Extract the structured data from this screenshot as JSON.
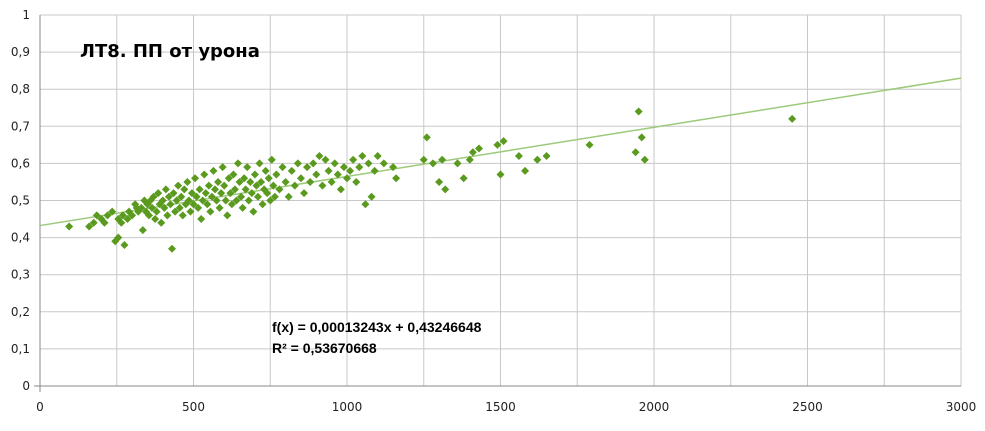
{
  "chart_data": {
    "type": "scatter",
    "title": "ЛТ8. ПП от урона",
    "xlabel": "",
    "ylabel": "",
    "xlim": [
      0,
      3000
    ],
    "ylim": [
      0,
      1
    ],
    "x_ticks": [
      0,
      500,
      1000,
      1500,
      2000,
      2500,
      3000
    ],
    "x_tick_labels": [
      "0",
      "500",
      "1000",
      "1500",
      "2000",
      "2500",
      "3000"
    ],
    "y_ticks": [
      0,
      0.1,
      0.2,
      0.3,
      0.4,
      0.5,
      0.6,
      0.7,
      0.8,
      0.9,
      1
    ],
    "y_tick_labels": [
      "0",
      "0,1",
      "0,2",
      "0,3",
      "0,4",
      "0,5",
      "0,6",
      "0,7",
      "0,8",
      "0,9",
      "1"
    ],
    "x_grid_step": 250,
    "grid": true,
    "colors": {
      "points": "#5a9a1e",
      "trendline": "#9cc97a",
      "grid": "#c8c8c8",
      "axis": "#888888"
    },
    "trendline": {
      "slope": 0.00013243,
      "intercept": 0.43246648
    },
    "annotations": [
      "f(x) = 0,00013243x + 0,43246648",
      "R² = 0,53670668"
    ],
    "series": [
      {
        "points": [
          [
            95,
            0.43
          ],
          [
            160,
            0.43
          ],
          [
            175,
            0.44
          ],
          [
            185,
            0.46
          ],
          [
            200,
            0.45
          ],
          [
            210,
            0.44
          ],
          [
            220,
            0.46
          ],
          [
            235,
            0.47
          ],
          [
            245,
            0.39
          ],
          [
            255,
            0.4
          ],
          [
            255,
            0.45
          ],
          [
            265,
            0.44
          ],
          [
            270,
            0.46
          ],
          [
            275,
            0.38
          ],
          [
            285,
            0.45
          ],
          [
            290,
            0.47
          ],
          [
            300,
            0.46
          ],
          [
            310,
            0.49
          ],
          [
            315,
            0.48
          ],
          [
            320,
            0.47
          ],
          [
            330,
            0.48
          ],
          [
            335,
            0.42
          ],
          [
            340,
            0.5
          ],
          [
            345,
            0.47
          ],
          [
            350,
            0.49
          ],
          [
            355,
            0.46
          ],
          [
            360,
            0.5
          ],
          [
            365,
            0.48
          ],
          [
            370,
            0.51
          ],
          [
            375,
            0.45
          ],
          [
            380,
            0.47
          ],
          [
            385,
            0.52
          ],
          [
            390,
            0.49
          ],
          [
            395,
            0.44
          ],
          [
            400,
            0.5
          ],
          [
            405,
            0.48
          ],
          [
            410,
            0.53
          ],
          [
            415,
            0.46
          ],
          [
            420,
            0.51
          ],
          [
            425,
            0.49
          ],
          [
            430,
            0.37
          ],
          [
            435,
            0.52
          ],
          [
            440,
            0.47
          ],
          [
            445,
            0.5
          ],
          [
            450,
            0.54
          ],
          [
            455,
            0.48
          ],
          [
            460,
            0.51
          ],
          [
            465,
            0.46
          ],
          [
            470,
            0.53
          ],
          [
            475,
            0.49
          ],
          [
            480,
            0.55
          ],
          [
            485,
            0.5
          ],
          [
            490,
            0.47
          ],
          [
            495,
            0.52
          ],
          [
            500,
            0.49
          ],
          [
            505,
            0.56
          ],
          [
            510,
            0.51
          ],
          [
            515,
            0.48
          ],
          [
            520,
            0.53
          ],
          [
            525,
            0.45
          ],
          [
            530,
            0.5
          ],
          [
            535,
            0.57
          ],
          [
            540,
            0.52
          ],
          [
            545,
            0.49
          ],
          [
            550,
            0.54
          ],
          [
            555,
            0.47
          ],
          [
            560,
            0.51
          ],
          [
            565,
            0.58
          ],
          [
            570,
            0.53
          ],
          [
            575,
            0.5
          ],
          [
            580,
            0.55
          ],
          [
            585,
            0.48
          ],
          [
            590,
            0.52
          ],
          [
            595,
            0.59
          ],
          [
            600,
            0.54
          ],
          [
            605,
            0.5
          ],
          [
            610,
            0.46
          ],
          [
            615,
            0.56
          ],
          [
            620,
            0.52
          ],
          [
            625,
            0.49
          ],
          [
            630,
            0.57
          ],
          [
            635,
            0.53
          ],
          [
            640,
            0.5
          ],
          [
            645,
            0.6
          ],
          [
            650,
            0.55
          ],
          [
            655,
            0.51
          ],
          [
            660,
            0.48
          ],
          [
            665,
            0.56
          ],
          [
            670,
            0.53
          ],
          [
            675,
            0.59
          ],
          [
            680,
            0.5
          ],
          [
            685,
            0.55
          ],
          [
            690,
            0.52
          ],
          [
            695,
            0.47
          ],
          [
            700,
            0.57
          ],
          [
            705,
            0.54
          ],
          [
            710,
            0.51
          ],
          [
            715,
            0.6
          ],
          [
            720,
            0.55
          ],
          [
            725,
            0.49
          ],
          [
            730,
            0.53
          ],
          [
            735,
            0.58
          ],
          [
            740,
            0.52
          ],
          [
            745,
            0.56
          ],
          [
            750,
            0.5
          ],
          [
            755,
            0.61
          ],
          [
            760,
            0.54
          ],
          [
            765,
            0.51
          ],
          [
            770,
            0.57
          ],
          [
            780,
            0.53
          ],
          [
            790,
            0.59
          ],
          [
            800,
            0.55
          ],
          [
            810,
            0.51
          ],
          [
            820,
            0.58
          ],
          [
            830,
            0.54
          ],
          [
            840,
            0.6
          ],
          [
            850,
            0.56
          ],
          [
            860,
            0.52
          ],
          [
            870,
            0.59
          ],
          [
            880,
            0.55
          ],
          [
            890,
            0.6
          ],
          [
            900,
            0.57
          ],
          [
            910,
            0.62
          ],
          [
            920,
            0.54
          ],
          [
            930,
            0.61
          ],
          [
            940,
            0.58
          ],
          [
            950,
            0.55
          ],
          [
            960,
            0.6
          ],
          [
            970,
            0.57
          ],
          [
            980,
            0.53
          ],
          [
            990,
            0.59
          ],
          [
            1000,
            0.56
          ],
          [
            1010,
            0.58
          ],
          [
            1020,
            0.61
          ],
          [
            1030,
            0.55
          ],
          [
            1040,
            0.59
          ],
          [
            1050,
            0.62
          ],
          [
            1060,
            0.49
          ],
          [
            1070,
            0.6
          ],
          [
            1080,
            0.51
          ],
          [
            1090,
            0.58
          ],
          [
            1100,
            0.62
          ],
          [
            1120,
            0.6
          ],
          [
            1150,
            0.59
          ],
          [
            1160,
            0.56
          ],
          [
            1250,
            0.61
          ],
          [
            1260,
            0.67
          ],
          [
            1280,
            0.6
          ],
          [
            1300,
            0.55
          ],
          [
            1310,
            0.61
          ],
          [
            1320,
            0.53
          ],
          [
            1360,
            0.6
          ],
          [
            1380,
            0.56
          ],
          [
            1400,
            0.61
          ],
          [
            1410,
            0.63
          ],
          [
            1430,
            0.64
          ],
          [
            1490,
            0.65
          ],
          [
            1500,
            0.57
          ],
          [
            1510,
            0.66
          ],
          [
            1560,
            0.62
          ],
          [
            1580,
            0.58
          ],
          [
            1620,
            0.61
          ],
          [
            1650,
            0.62
          ],
          [
            1790,
            0.65
          ],
          [
            1940,
            0.63
          ],
          [
            1950,
            0.74
          ],
          [
            1960,
            0.67
          ],
          [
            1970,
            0.61
          ],
          [
            2450,
            0.72
          ]
        ]
      }
    ]
  }
}
